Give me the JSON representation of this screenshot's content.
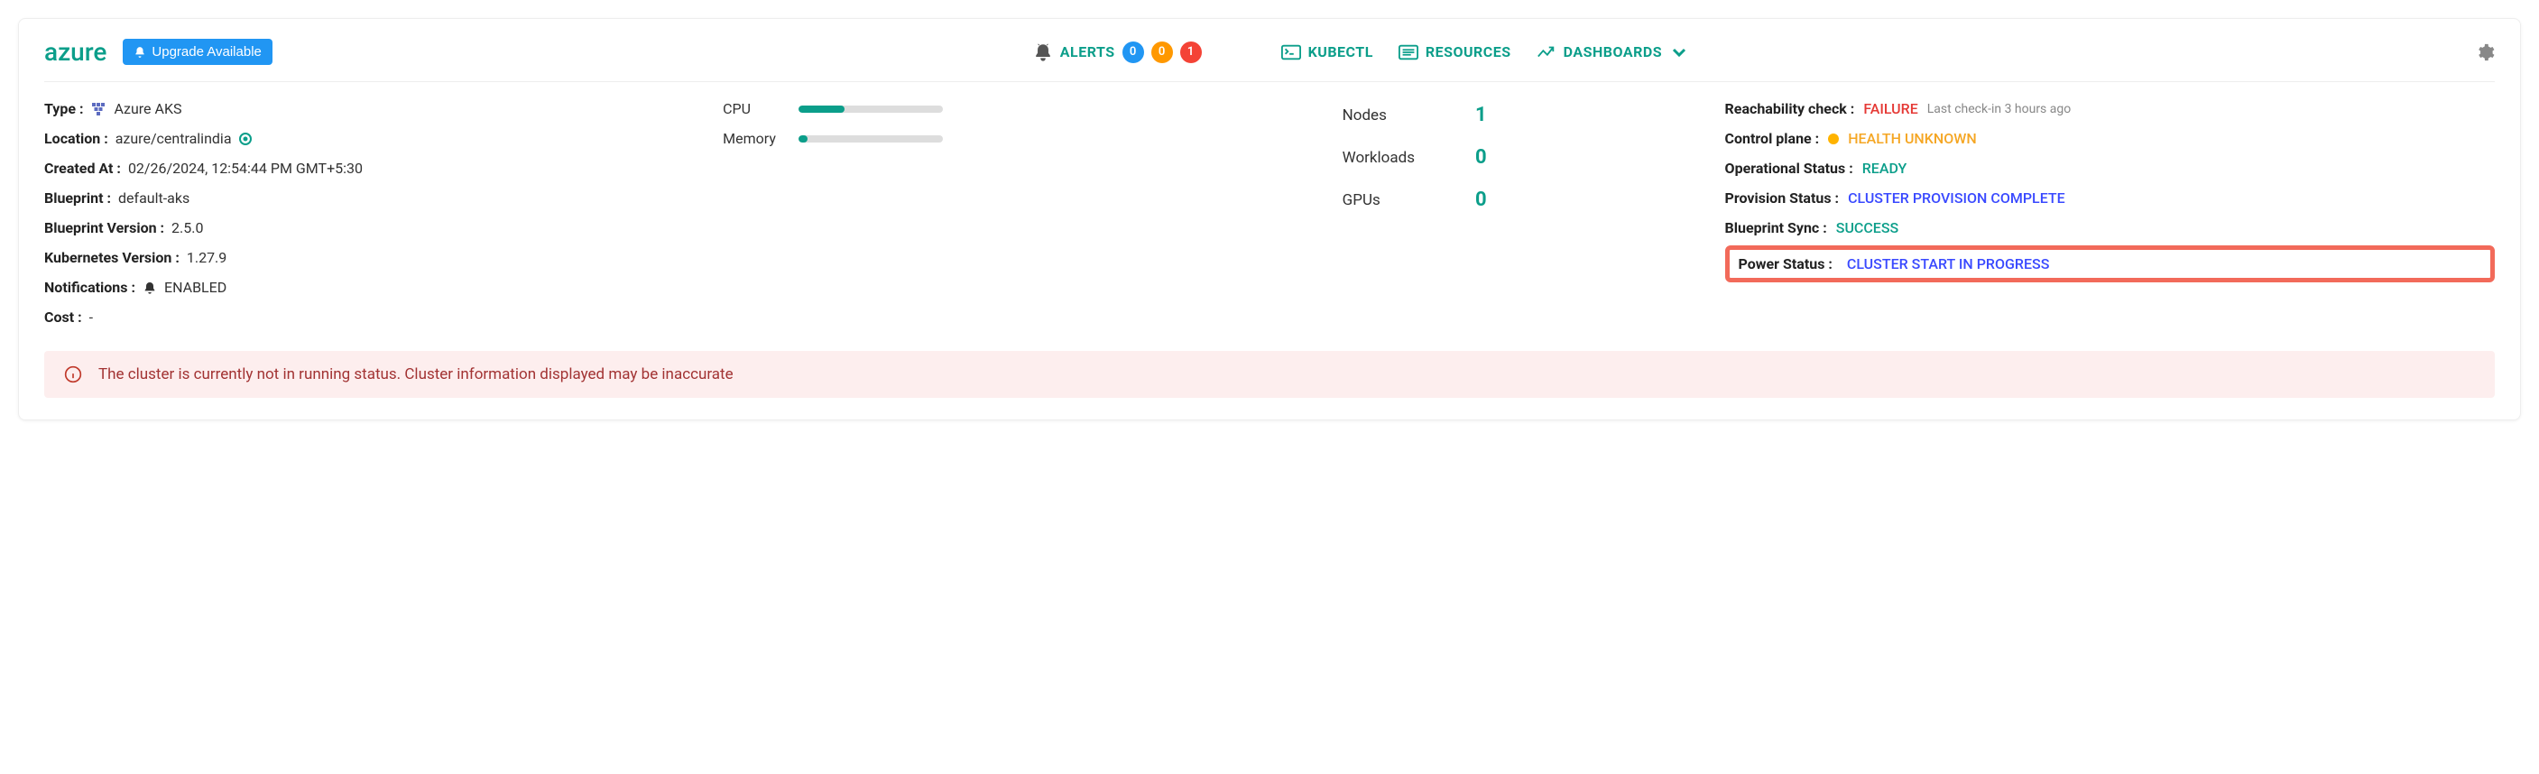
{
  "header": {
    "title": "azure",
    "upgrade_label": "Upgrade Available",
    "alerts_label": "ALERTS",
    "alert_counts": {
      "info": "0",
      "warn": "0",
      "crit": "1"
    },
    "nav": {
      "kubectl": "KUBECTL",
      "resources": "RESOURCES",
      "dashboards": "DASHBOARDS"
    }
  },
  "details": {
    "type_k": "Type :",
    "type_v": "Azure AKS",
    "location_k": "Location :",
    "location_v": "azure/centralindia",
    "created_k": "Created At :",
    "created_v": "02/26/2024, 12:54:44 PM GMT+5:30",
    "blueprint_k": "Blueprint :",
    "blueprint_v": "default-aks",
    "bpver_k": "Blueprint Version :",
    "bpver_v": "2.5.0",
    "k8s_k": "Kubernetes Version :",
    "k8s_v": "1.27.9",
    "notif_k": "Notifications :",
    "notif_v": "ENABLED",
    "cost_k": "Cost :",
    "cost_v": "-"
  },
  "usage": {
    "cpu_label": "CPU",
    "cpu_pct": 32,
    "mem_label": "Memory",
    "mem_pct": 6
  },
  "counts": {
    "nodes_k": "Nodes",
    "nodes_v": "1",
    "workloads_k": "Workloads",
    "workloads_v": "0",
    "gpus_k": "GPUs",
    "gpus_v": "0"
  },
  "status": {
    "reach_k": "Reachability check :",
    "reach_v": "FAILURE",
    "reach_note": "Last check-in  3 hours ago",
    "cplane_k": "Control plane :",
    "cplane_v": "HEALTH UNKNOWN",
    "op_k": "Operational Status :",
    "op_v": "READY",
    "prov_k": "Provision Status :",
    "prov_v": "CLUSTER PROVISION COMPLETE",
    "sync_k": "Blueprint Sync :",
    "sync_v": "SUCCESS",
    "power_k": "Power Status :",
    "power_v": "CLUSTER START IN PROGRESS"
  },
  "warning": "The cluster is currently not in running status. Cluster information displayed may be inaccurate",
  "colors": {
    "teal": "#0b9e8a",
    "blue": "#3949ff",
    "red": "#e53935",
    "orange": "#f5a623",
    "highlight_border": "#f26a5a",
    "warn_bg": "#fdeeee"
  }
}
